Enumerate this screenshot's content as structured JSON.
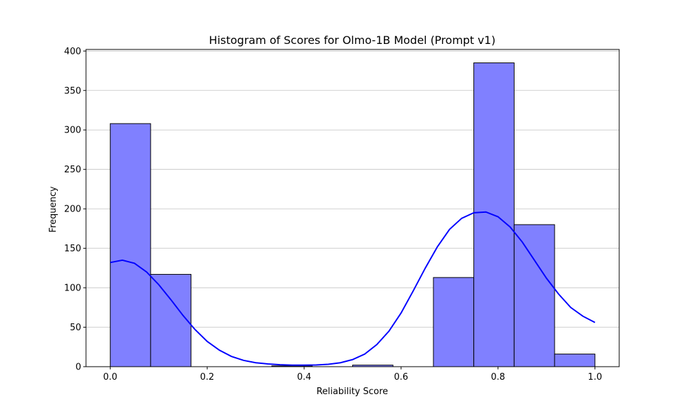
{
  "chart_data": {
    "type": "bar",
    "title": "Histogram of Scores for Olmo-1B Model (Prompt v1)",
    "xlabel": "Reliability Score",
    "ylabel": "Frequency",
    "xlim": [
      -0.05,
      1.05
    ],
    "ylim": [
      0,
      402
    ],
    "xticks": [
      0.0,
      0.2,
      0.4,
      0.6,
      0.8,
      1.0
    ],
    "xtick_labels": [
      "0.0",
      "0.2",
      "0.4",
      "0.6",
      "0.8",
      "1.0"
    ],
    "yticks": [
      0,
      50,
      100,
      150,
      200,
      250,
      300,
      350,
      400
    ],
    "ytick_labels": [
      "0",
      "50",
      "100",
      "150",
      "200",
      "250",
      "300",
      "350",
      "400"
    ],
    "grid": "y",
    "bar_color": "#8080ff",
    "kde_color": "#0000ff",
    "bins": [
      {
        "start": 0.0,
        "end": 0.0833,
        "count": 308
      },
      {
        "start": 0.0833,
        "end": 0.1667,
        "count": 117
      },
      {
        "start": 0.1667,
        "end": 0.25,
        "count": 0
      },
      {
        "start": 0.25,
        "end": 0.3333,
        "count": 0
      },
      {
        "start": 0.3333,
        "end": 0.4167,
        "count": 1
      },
      {
        "start": 0.4167,
        "end": 0.5,
        "count": 0
      },
      {
        "start": 0.5,
        "end": 0.5833,
        "count": 2
      },
      {
        "start": 0.5833,
        "end": 0.6667,
        "count": 0
      },
      {
        "start": 0.6667,
        "end": 0.75,
        "count": 113
      },
      {
        "start": 0.75,
        "end": 0.8333,
        "count": 385
      },
      {
        "start": 0.8333,
        "end": 0.9167,
        "count": 180
      },
      {
        "start": 0.9167,
        "end": 1.0,
        "count": 16
      }
    ],
    "kde": {
      "x": [
        0.0,
        0.025,
        0.05,
        0.075,
        0.1,
        0.125,
        0.15,
        0.175,
        0.2,
        0.225,
        0.25,
        0.275,
        0.3,
        0.325,
        0.35,
        0.375,
        0.4,
        0.425,
        0.45,
        0.475,
        0.5,
        0.525,
        0.55,
        0.575,
        0.6,
        0.625,
        0.65,
        0.675,
        0.7,
        0.725,
        0.75,
        0.775,
        0.8,
        0.825,
        0.85,
        0.875,
        0.9,
        0.925,
        0.95,
        0.975,
        1.0
      ],
      "y": [
        132,
        135,
        131,
        120,
        104,
        85,
        65,
        47,
        32,
        21,
        13,
        8,
        5,
        3.5,
        2.5,
        2,
        2,
        2.2,
        3,
        5,
        9,
        16,
        28,
        45,
        68,
        96,
        125,
        152,
        174,
        188,
        195,
        196,
        190,
        177,
        158,
        135,
        112,
        92,
        75,
        64,
        56
      ]
    }
  }
}
